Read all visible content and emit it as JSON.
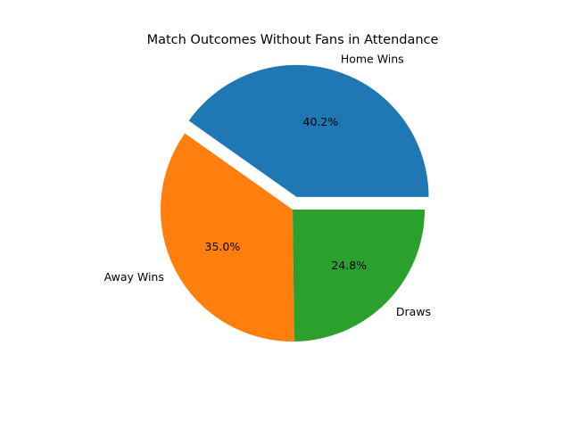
{
  "chart_data": {
    "type": "pie",
    "title": "Match Outcomes Without Fans in Attendance",
    "categories": [
      "Home Wins",
      "Away Wins",
      "Draws"
    ],
    "values": [
      40.2,
      35.0,
      24.8
    ],
    "percent_labels": [
      "40.2%",
      "35.0%",
      "24.8%"
    ],
    "explode": [
      0.1,
      0,
      0
    ],
    "colors": [
      "#1f77b4",
      "#ff7f0e",
      "#2ca02c"
    ],
    "start_angle": 0,
    "direction": "counterclockwise",
    "legend": "none"
  }
}
